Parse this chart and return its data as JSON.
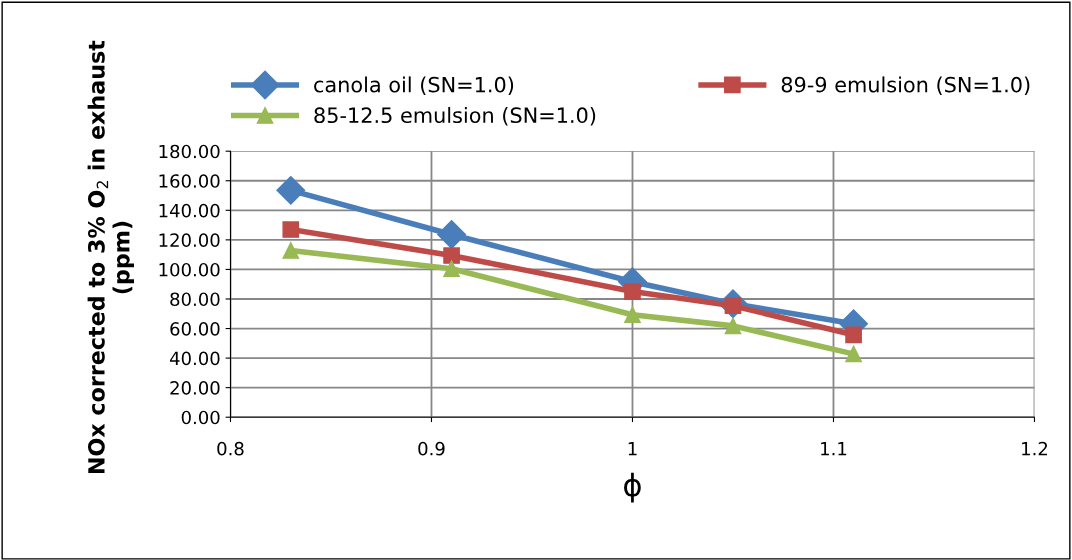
{
  "chart_data": {
    "type": "line",
    "xlabel": "ϕ",
    "ylabel": "NOx corrected to 3% O$_{2}$ in exhaust (ppm)",
    "xlim": [
      0.8,
      1.2
    ],
    "xticks": [
      0.8,
      0.9,
      1,
      1.1,
      1.2
    ],
    "ylim": [
      0,
      180
    ],
    "yticks": [
      {
        "value": 0,
        "label": "0.00"
      },
      {
        "value": 20,
        "label": "20.00"
      },
      {
        "value": 40,
        "label": "40.00"
      },
      {
        "value": 60,
        "label": "60.00"
      },
      {
        "value": 80,
        "label": "80.00"
      },
      {
        "value": 100,
        "label": "100.00"
      },
      {
        "value": 120,
        "label": "120.00"
      },
      {
        "value": 140,
        "label": "140.00"
      },
      {
        "value": 160,
        "label": "160.00"
      },
      {
        "value": 180,
        "label": "180.00"
      }
    ],
    "grid": true,
    "legend": "top",
    "line_style": "solid",
    "x": [
      0.83,
      0.91,
      1.0,
      1.05,
      1.11
    ],
    "series": [
      {
        "name": "canola oil (SN=1.0)",
        "color": "#4a7ebb",
        "marker": "diamond",
        "values": [
          153.5,
          123.6,
          91.7,
          76.8,
          63.2
        ]
      },
      {
        "name": "89-9 emulsion (SN=1.0)",
        "color": "#be4b48",
        "marker": "square",
        "values": [
          127,
          109.4,
          85,
          75.4,
          55.7
        ]
      },
      {
        "name": "85-12.5 emulsion (SN=1.0)",
        "color": "#98b954",
        "marker": "triangle",
        "values": [
          112.8,
          100.5,
          69.3,
          61.8,
          42.8
        ]
      }
    ]
  }
}
